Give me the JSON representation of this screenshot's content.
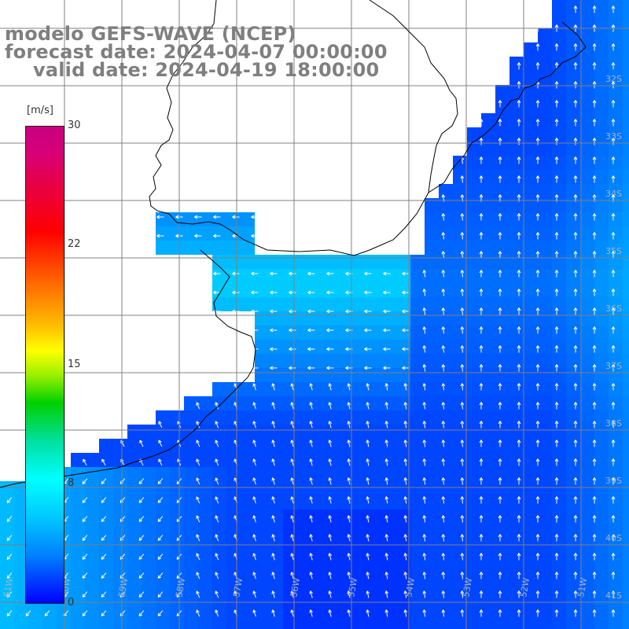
{
  "title": {
    "model": "modelo GEFS-WAVE (NCEP)",
    "forecast": "forecast date: 2024-04-07 00:00:00",
    "valid": "valid date: 2024-04-19 18:00:00"
  },
  "colorbar": {
    "unit": "[m/s]",
    "max": 30,
    "ticks": [
      "30",
      "22",
      "15",
      "8",
      "0"
    ]
  },
  "grid_labels": {
    "latitudes": [
      "32S",
      "33S",
      "34S",
      "35S",
      "36S",
      "37S",
      "38S",
      "39S",
      "40S",
      "41S"
    ],
    "longitudes": [
      "61W",
      "60W",
      "59W",
      "58W",
      "57W",
      "56W",
      "55W",
      "54W",
      "53W",
      "52W",
      "51W"
    ]
  },
  "colors": {
    "land": "#ffffff",
    "coast": "#000000",
    "grid": "#808080",
    "title": "#7f7f7f",
    "arrows": "#ffffff"
  }
}
